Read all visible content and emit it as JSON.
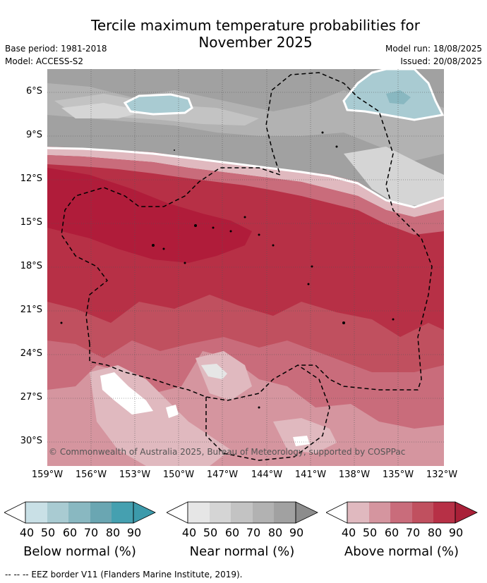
{
  "title": {
    "line1": "Tercile maximum temperature probabilities for",
    "line2": "November 2025"
  },
  "meta": {
    "base_period": "Base period: 1981-2018",
    "model": "Model: ACCESS-S2",
    "model_run": "Model run: 18/08/2025",
    "issued": "Issued: 20/08/2025"
  },
  "map": {
    "lat_labels": [
      "6°S",
      "9°S",
      "12°S",
      "15°S",
      "18°S",
      "21°S",
      "24°S",
      "27°S",
      "30°S"
    ],
    "lon_labels": [
      "159°W",
      "156°W",
      "153°W",
      "150°W",
      "147°W",
      "144°W",
      "141°W",
      "138°W",
      "135°W",
      "132°W"
    ],
    "copyright": "© Commonwealth of Australia 2025, Bureau of Meteorology, supported by COSPPac",
    "colors": {
      "above": [
        "#e0b9bf",
        "#d5959f",
        "#c96c7b",
        "#c0505f",
        "#b73046"
      ],
      "near": [
        "#e6e6e6",
        "#d5d5d5",
        "#c3c3c3",
        "#b2b2b2",
        "#a1a1a1"
      ],
      "below": [
        "#c9e0e6",
        "#a9cbd2",
        "#89b8c1",
        "#6aa6b2",
        "#45a0b0"
      ]
    }
  },
  "legends": [
    {
      "title": "Below normal (%)",
      "ticks": [
        "40",
        "50",
        "60",
        "70",
        "80",
        "90"
      ],
      "colors": [
        "#c9e0e6",
        "#a9cbd2",
        "#89b8c1",
        "#6aa6b2",
        "#45a0b0"
      ],
      "end": "#3c9aab"
    },
    {
      "title": "Near normal (%)",
      "ticks": [
        "40",
        "50",
        "60",
        "70",
        "80",
        "90"
      ],
      "colors": [
        "#e6e6e6",
        "#d5d5d5",
        "#c3c3c3",
        "#b2b2b2",
        "#a1a1a1"
      ],
      "end": "#8c8c8c"
    },
    {
      "title": "Above normal (%)",
      "ticks": [
        "40",
        "50",
        "60",
        "70",
        "80",
        "90"
      ],
      "colors": [
        "#e0b9bf",
        "#d5959f",
        "#c96c7b",
        "#c0505f",
        "#b73046"
      ],
      "end": "#a92038"
    }
  ],
  "footnote": "--  --  -- EEZ border V11 (Flanders Marine Institute, 2019)."
}
